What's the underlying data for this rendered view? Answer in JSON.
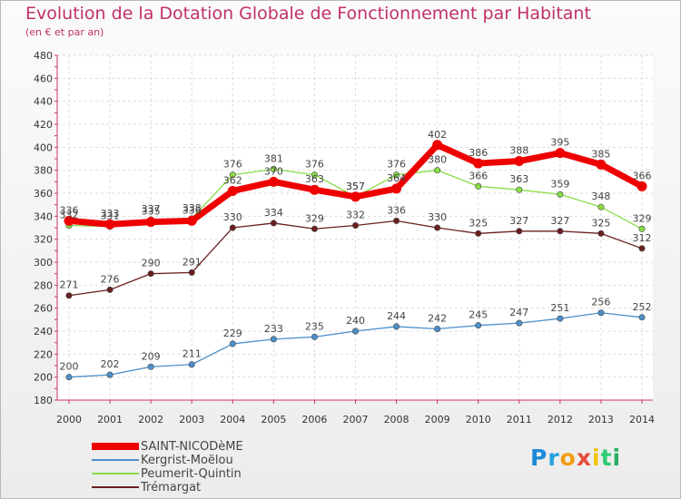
{
  "chart_data": {
    "type": "line",
    "title": "Evolution de la Dotation Globale de Fonctionnement par Habitant",
    "subtitle": "(en € et par an)",
    "x": [
      "2000",
      "2001",
      "2002",
      "2003",
      "2004",
      "2005",
      "2006",
      "2007",
      "2008",
      "2009",
      "2010",
      "2011",
      "2012",
      "2013",
      "2014"
    ],
    "ylim": [
      180,
      480
    ],
    "yticks": [
      180,
      200,
      220,
      240,
      260,
      280,
      300,
      320,
      340,
      360,
      380,
      400,
      420,
      440,
      460,
      480
    ],
    "grid": true,
    "legend_position": "bottom-left",
    "series": [
      {
        "name": "SAINT-NICODèME",
        "color": "#ee0000",
        "values": [
          336,
          333,
          335,
          336,
          362,
          370,
          363,
          357,
          364,
          402,
          386,
          388,
          395,
          385,
          366
        ]
      },
      {
        "name": "Kergrist-Moëlou",
        "color": "#4d8fca",
        "values": [
          200,
          202,
          209,
          211,
          229,
          233,
          235,
          240,
          244,
          242,
          245,
          247,
          251,
          256,
          252
        ]
      },
      {
        "name": "Peumerit-Quintin",
        "color": "#88dd44",
        "values": [
          332,
          331,
          337,
          338,
          376,
          381,
          376,
          357,
          376,
          380,
          366,
          363,
          359,
          348,
          329
        ]
      },
      {
        "name": "Trémargat",
        "color": "#6a1f1f",
        "values": [
          271,
          276,
          290,
          291,
          330,
          334,
          329,
          332,
          336,
          330,
          325,
          327,
          327,
          325,
          312
        ]
      }
    ]
  },
  "logo": {
    "letters": [
      "P",
      "r",
      "o",
      "x",
      "i",
      "t",
      "i"
    ]
  }
}
